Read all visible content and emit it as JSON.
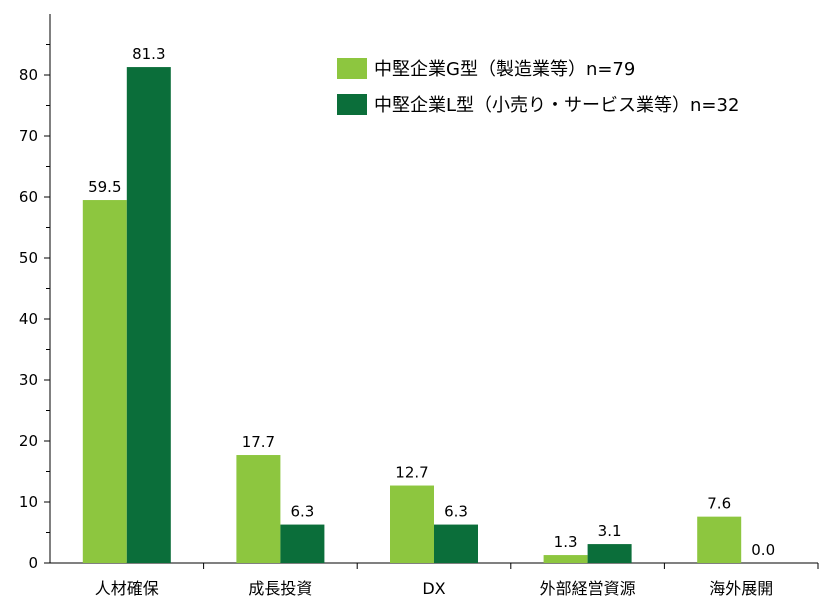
{
  "chart_data": {
    "type": "bar",
    "categories": [
      "人材確保",
      "成長投資",
      "DX",
      "外部経営資源",
      "海外展開"
    ],
    "series": [
      {
        "name": "中堅企業G型（製造業等）n=79",
        "color": "#8DC63F",
        "values": [
          59.5,
          17.7,
          12.7,
          1.3,
          7.6
        ],
        "labels": [
          "59.5",
          "17.7",
          "12.7",
          "1.3",
          "7.6"
        ]
      },
      {
        "name": "中堅企業L型（小売り・サービス業等）n=32",
        "color": "#0B6E3A",
        "values": [
          81.3,
          6.3,
          6.3,
          3.1,
          0.0
        ],
        "labels": [
          "81.3",
          "6.3",
          "6.3",
          "3.1",
          "0.0"
        ]
      }
    ],
    "yticks": [
      "0",
      "10",
      "20",
      "30",
      "40",
      "50",
      "60",
      "70",
      "80"
    ],
    "ylim": [
      0,
      90
    ],
    "title": "",
    "xlabel": "",
    "ylabel": "",
    "legend_position": "top-right",
    "grid": false
  }
}
